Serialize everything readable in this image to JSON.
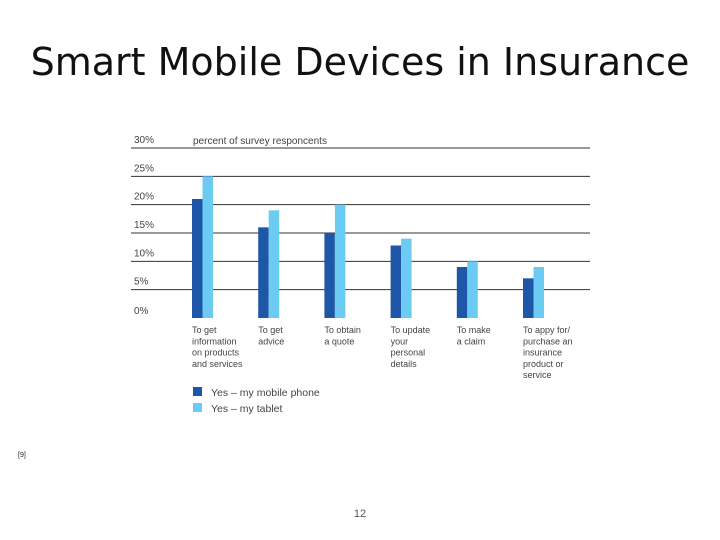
{
  "slide": {
    "title": "Smart Mobile Devices in Insurance",
    "reference": "[9]",
    "page_number": "12"
  },
  "chart_data": {
    "type": "bar",
    "title": "",
    "ylabel": "percent of survey responcents",
    "xlabel": "",
    "ylim": [
      0,
      30
    ],
    "yticks": [
      0,
      5,
      10,
      15,
      20,
      25,
      30
    ],
    "ytick_labels": [
      "0%",
      "5%",
      "10%",
      "15%",
      "20%",
      "25%",
      "30%"
    ],
    "grid": true,
    "legend_position": "bottom-left",
    "categories": [
      [
        "To get",
        "information",
        "on products",
        "and services"
      ],
      [
        "To get",
        "advice"
      ],
      [
        "To obtain",
        "a quote"
      ],
      [
        "To update",
        "your",
        "personal",
        "details"
      ],
      [
        "To make",
        "a claim"
      ],
      [
        "To appy for/",
        "purchase an",
        "insurance",
        "product or",
        "service"
      ]
    ],
    "series": [
      {
        "name": "Yes – my mobile phone",
        "color": "#1f57a8",
        "values": [
          21,
          16,
          15,
          12.8,
          9,
          7
        ]
      },
      {
        "name": "Yes – my tablet",
        "color": "#6ccbf2",
        "values": [
          25,
          19,
          20,
          14,
          10,
          9
        ]
      }
    ]
  }
}
